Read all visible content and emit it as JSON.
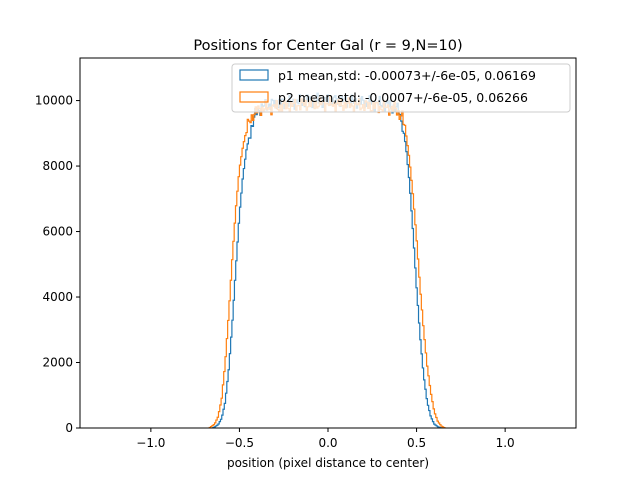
{
  "chart_data": {
    "type": "histogram",
    "title": "Positions for Center Gal (r = 9,N=10)",
    "xlabel": "position (pixel distance to center)",
    "ylabel": "",
    "xlim": [
      -1.4,
      1.4
    ],
    "ylim": [
      0,
      11300
    ],
    "xticks": [
      -1.0,
      -0.5,
      0.0,
      0.5,
      1.0
    ],
    "xtick_labels": [
      "−1.0",
      "−0.5",
      "0.0",
      "0.5",
      "1.0"
    ],
    "yticks": [
      0,
      2000,
      4000,
      6000,
      8000,
      10000
    ],
    "ytick_labels": [
      "0",
      "2000",
      "4000",
      "6000",
      "8000",
      "10000"
    ],
    "legend_position": "top-right",
    "grid": false,
    "series": [
      {
        "name": "p1 mean,std: -0.00073+/-6e-05, 0.06169",
        "color": "#1f77b4",
        "points": [
          [
            -0.65,
            0
          ],
          [
            -0.62,
            100
          ],
          [
            -0.6,
            300
          ],
          [
            -0.58,
            800
          ],
          [
            -0.56,
            1800
          ],
          [
            -0.54,
            3200
          ],
          [
            -0.52,
            4900
          ],
          [
            -0.5,
            6500
          ],
          [
            -0.48,
            7700
          ],
          [
            -0.46,
            8500
          ],
          [
            -0.44,
            9000
          ],
          [
            -0.42,
            9400
          ],
          [
            -0.4,
            9700
          ],
          [
            -0.35,
            9850
          ],
          [
            -0.3,
            9900
          ],
          [
            -0.2,
            9950
          ],
          [
            -0.1,
            10000
          ],
          [
            0,
            10000
          ],
          [
            0.1,
            9980
          ],
          [
            0.2,
            9950
          ],
          [
            0.3,
            9900
          ],
          [
            0.35,
            9850
          ],
          [
            0.4,
            9700
          ],
          [
            0.42,
            9300
          ],
          [
            0.44,
            8600
          ],
          [
            0.46,
            7500
          ],
          [
            0.48,
            6000
          ],
          [
            0.5,
            4300
          ],
          [
            0.52,
            2800
          ],
          [
            0.54,
            1600
          ],
          [
            0.56,
            800
          ],
          [
            0.58,
            350
          ],
          [
            0.6,
            120
          ],
          [
            0.62,
            40
          ],
          [
            0.64,
            0
          ]
        ]
      },
      {
        "name": "p2 mean,std: -0.0007+/-6e-05, 0.06266",
        "color": "#ff7f0e",
        "points": [
          [
            -0.67,
            0
          ],
          [
            -0.64,
            120
          ],
          [
            -0.62,
            350
          ],
          [
            -0.6,
            900
          ],
          [
            -0.58,
            2000
          ],
          [
            -0.56,
            3500
          ],
          [
            -0.54,
            5200
          ],
          [
            -0.52,
            6700
          ],
          [
            -0.5,
            7900
          ],
          [
            -0.48,
            8600
          ],
          [
            -0.46,
            9100
          ],
          [
            -0.44,
            9400
          ],
          [
            -0.42,
            9600
          ],
          [
            -0.38,
            9750
          ],
          [
            -0.3,
            9800
          ],
          [
            -0.2,
            9850
          ],
          [
            -0.1,
            9900
          ],
          [
            0,
            9900
          ],
          [
            0.1,
            9880
          ],
          [
            0.2,
            9850
          ],
          [
            0.3,
            9800
          ],
          [
            0.38,
            9750
          ],
          [
            0.42,
            9500
          ],
          [
            0.44,
            9000
          ],
          [
            0.46,
            8200
          ],
          [
            0.48,
            7100
          ],
          [
            0.5,
            5800
          ],
          [
            0.52,
            4300
          ],
          [
            0.54,
            3000
          ],
          [
            0.56,
            1900
          ],
          [
            0.58,
            1100
          ],
          [
            0.6,
            500
          ],
          [
            0.62,
            200
          ],
          [
            0.64,
            60
          ],
          [
            0.66,
            0
          ]
        ]
      }
    ]
  }
}
